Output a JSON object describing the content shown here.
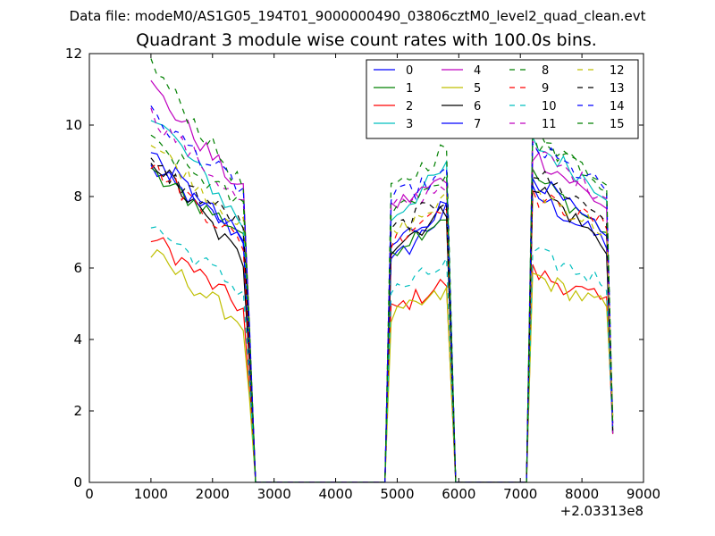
{
  "chart_data": {
    "type": "line",
    "suptitle": "Data file: modeM0/AS1G05_194T01_9000000490_03806cztM0_level2_quad_clean.evt",
    "title": "Quadrant 3 module wise count rates with 100.0s bins.",
    "xlabel": "",
    "ylabel": "",
    "x_offset_label": "+2.03313e8",
    "xlim": [
      0,
      9000
    ],
    "ylim": [
      0,
      12
    ],
    "xticks": [
      "0",
      "1000",
      "2000",
      "3000",
      "4000",
      "5000",
      "6000",
      "7000",
      "8000",
      "9000"
    ],
    "yticks": [
      "0",
      "2",
      "4",
      "6",
      "8",
      "10",
      "12"
    ],
    "grid": false,
    "legend_position": "top-right",
    "segments": [
      {
        "x_start": 1000,
        "x_end": 2600
      },
      {
        "x_start": 4900,
        "x_end": 5800
      },
      {
        "x_start": 7200,
        "x_end": 8400
      }
    ],
    "series": [
      {
        "name": "0",
        "color": "#0000ff",
        "dash": "solid",
        "levels": [
          [
            8.8,
            6.7
          ],
          [
            6.1,
            7.6
          ],
          [
            8.1,
            6.7
          ]
        ]
      },
      {
        "name": "1",
        "color": "#008000",
        "dash": "solid",
        "levels": [
          [
            8.6,
            6.9
          ],
          [
            6.5,
            7.5
          ],
          [
            8.6,
            7.0
          ]
        ]
      },
      {
        "name": "2",
        "color": "#ff0000",
        "dash": "solid",
        "levels": [
          [
            6.9,
            4.7
          ],
          [
            4.8,
            5.6
          ],
          [
            5.9,
            5.0
          ]
        ]
      },
      {
        "name": "3",
        "color": "#00bfbf",
        "dash": "solid",
        "levels": [
          [
            10.4,
            7.0
          ],
          [
            7.4,
            8.8
          ],
          [
            9.5,
            8.1
          ]
        ]
      },
      {
        "name": "4",
        "color": "#bf00bf",
        "dash": "solid",
        "levels": [
          [
            11.1,
            7.9
          ],
          [
            7.7,
            8.5
          ],
          [
            9.2,
            7.7
          ]
        ]
      },
      {
        "name": "5",
        "color": "#bfbf00",
        "dash": "solid",
        "levels": [
          [
            6.4,
            4.3
          ],
          [
            4.6,
            5.3
          ],
          [
            5.8,
            4.9
          ]
        ]
      },
      {
        "name": "6",
        "color": "#000000",
        "dash": "solid",
        "levels": [
          [
            9.1,
            6.0
          ],
          [
            6.6,
            7.6
          ],
          [
            8.4,
            6.6
          ]
        ]
      },
      {
        "name": "7",
        "color": "#0000ff",
        "dash": "solid",
        "levels": [
          [
            9.2,
            6.6
          ],
          [
            6.6,
            7.8
          ],
          [
            8.6,
            6.8
          ]
        ]
      },
      {
        "name": "8",
        "color": "#008000",
        "dash": "dashed",
        "levels": [
          [
            11.7,
            8.0
          ],
          [
            8.1,
            9.4
          ],
          [
            9.9,
            8.3
          ]
        ]
      },
      {
        "name": "9",
        "color": "#ff0000",
        "dash": "dashed",
        "levels": [
          [
            8.9,
            6.5
          ],
          [
            6.7,
            7.9
          ],
          [
            8.0,
            7.2
          ]
        ]
      },
      {
        "name": "10",
        "color": "#00bfbf",
        "dash": "dashed",
        "levels": [
          [
            7.2,
            5.2
          ],
          [
            5.3,
            6.1
          ],
          [
            6.4,
            5.6
          ]
        ]
      },
      {
        "name": "11",
        "color": "#bf00bf",
        "dash": "dashed",
        "levels": [
          [
            10.3,
            7.6
          ],
          [
            7.6,
            8.4
          ],
          [
            9.3,
            8.0
          ]
        ]
      },
      {
        "name": "12",
        "color": "#bfbf00",
        "dash": "dashed",
        "levels": [
          [
            9.5,
            7.0
          ],
          [
            6.9,
            7.9
          ],
          [
            8.2,
            7.0
          ]
        ]
      },
      {
        "name": "13",
        "color": "#000000",
        "dash": "dashed",
        "levels": [
          [
            8.9,
            7.1
          ],
          [
            7.0,
            8.0
          ],
          [
            8.7,
            7.4
          ]
        ]
      },
      {
        "name": "14",
        "color": "#0000ff",
        "dash": "dashed",
        "levels": [
          [
            10.3,
            8.0
          ],
          [
            7.9,
            8.6
          ],
          [
            9.4,
            8.2
          ]
        ]
      },
      {
        "name": "15",
        "color": "#008000",
        "dash": "dashed",
        "levels": [
          [
            9.5,
            7.6
          ],
          [
            7.6,
            8.6
          ],
          [
            9.6,
            8.4
          ]
        ]
      }
    ]
  }
}
